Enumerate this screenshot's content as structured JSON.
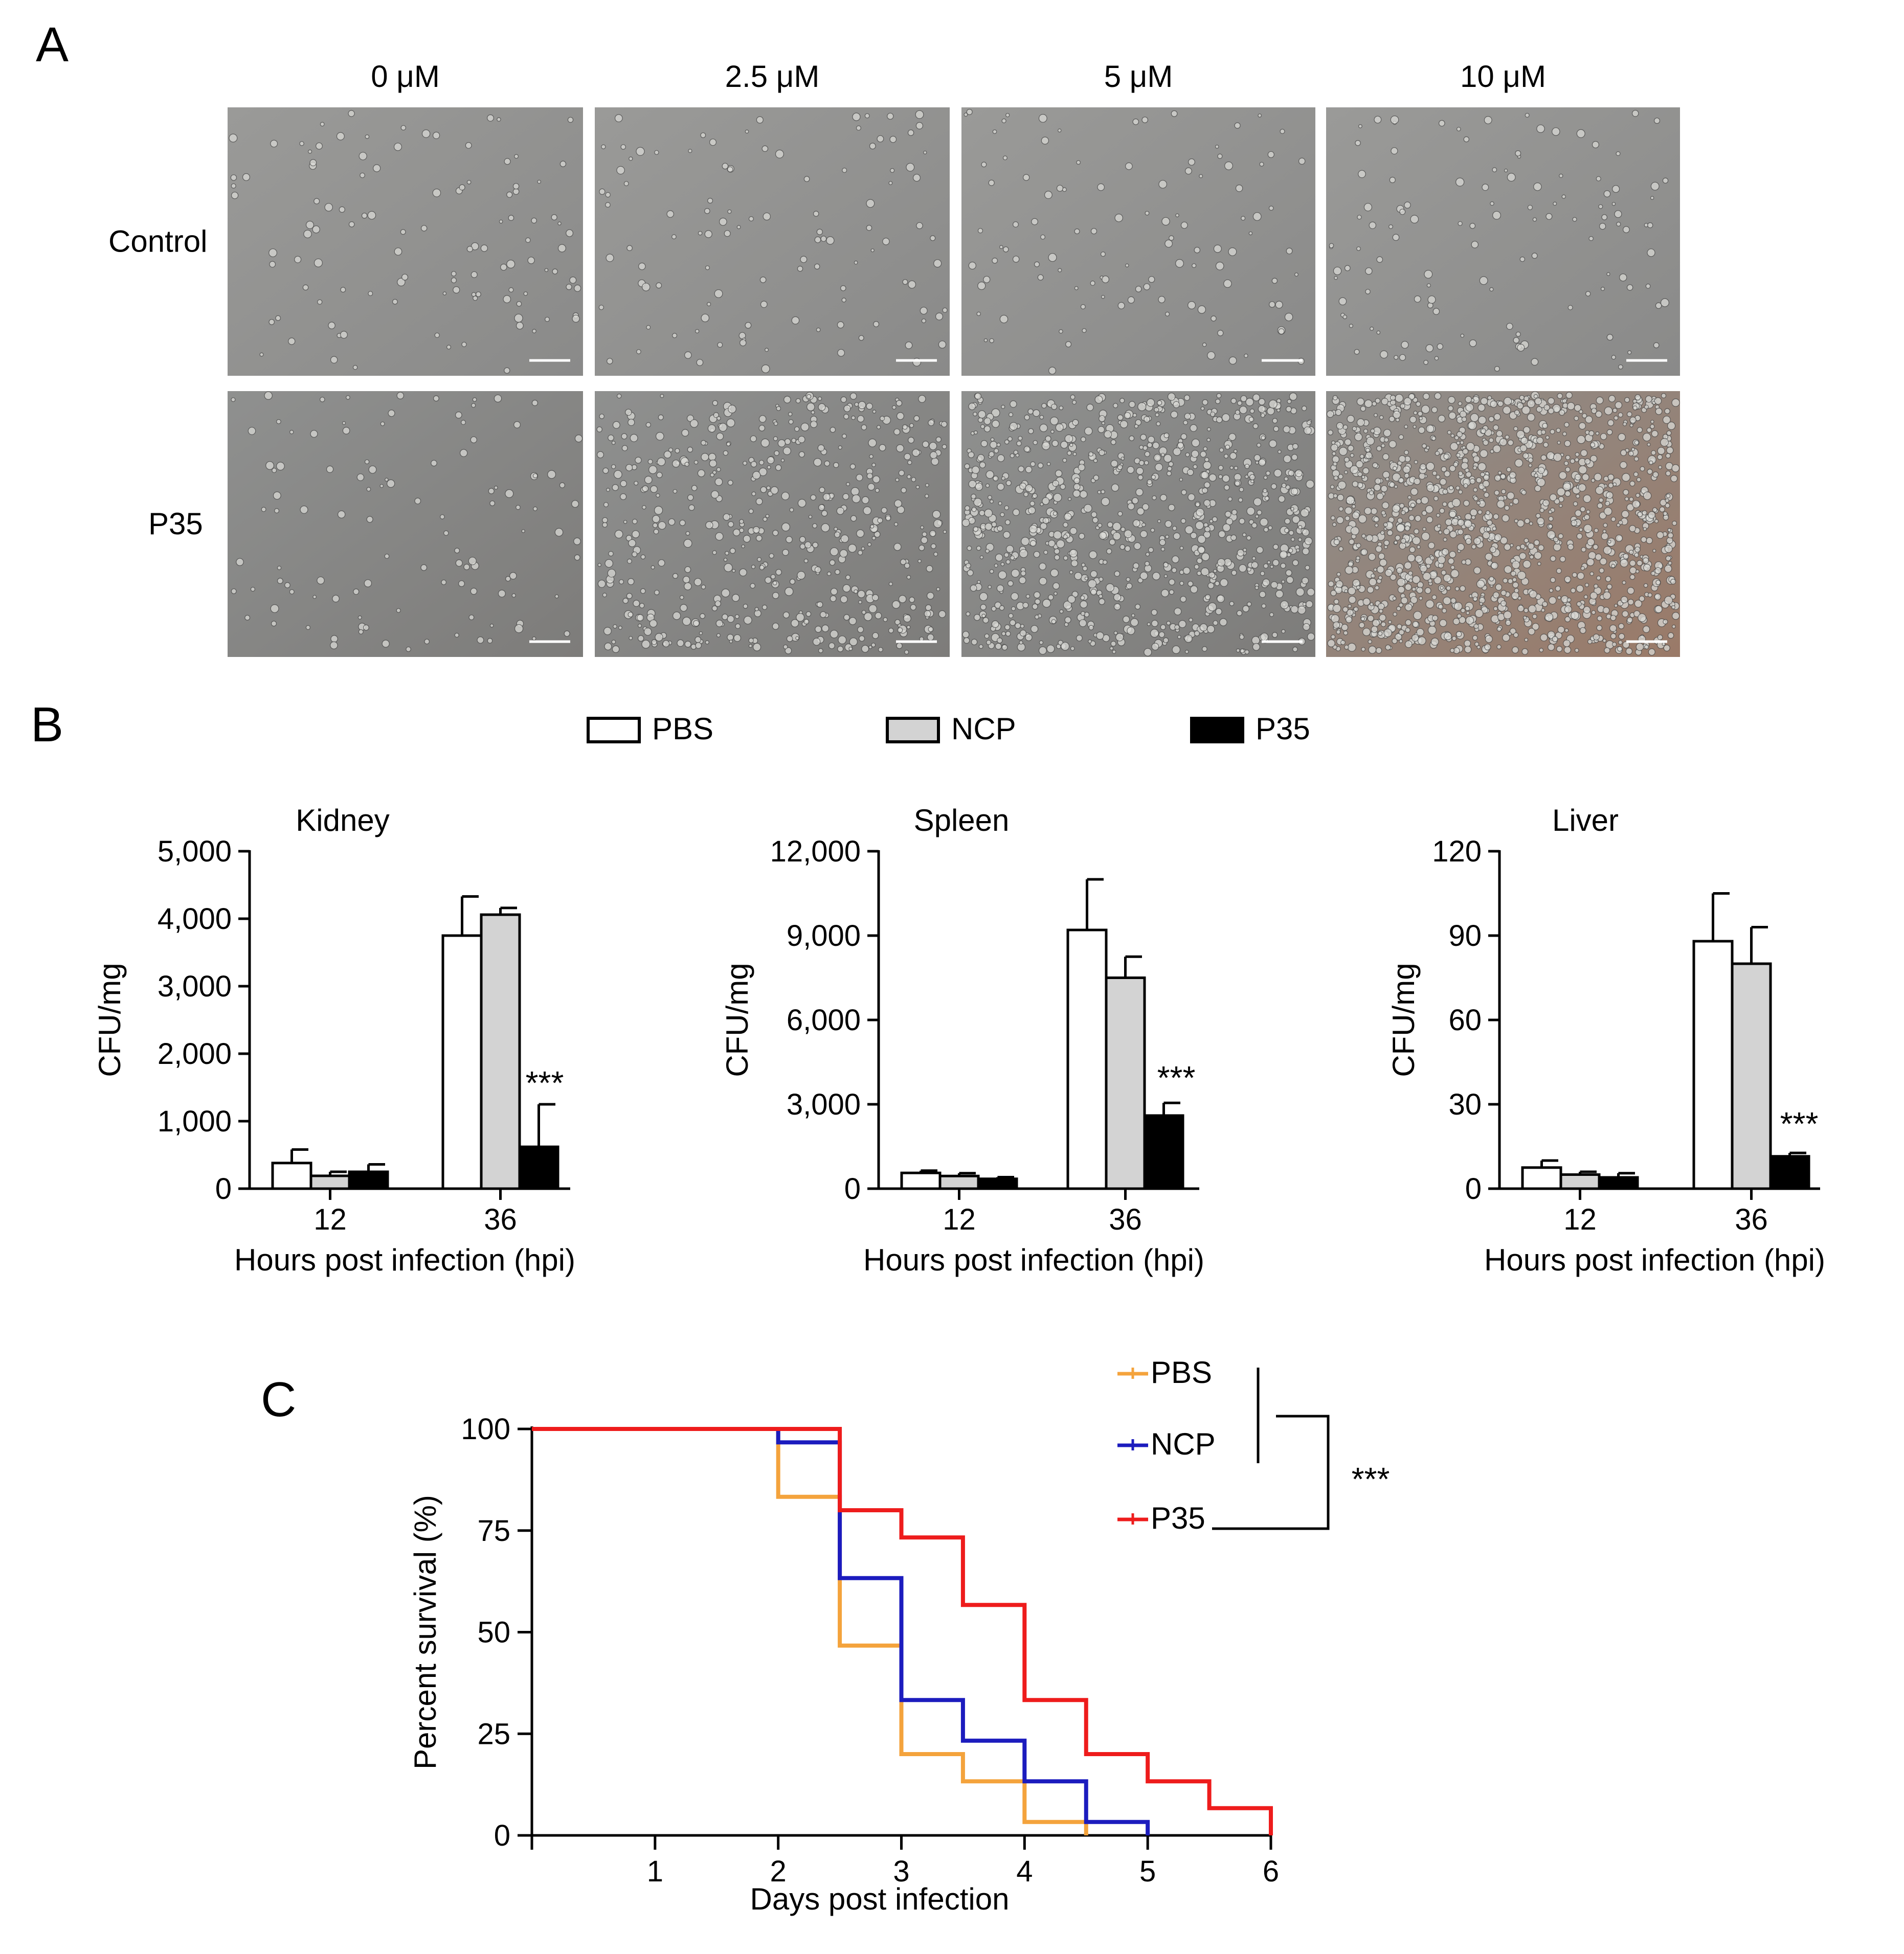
{
  "panel_a": {
    "letter": "A",
    "concentrations": [
      "0 μM",
      "2.5 μM",
      "5 μM",
      "10 μM"
    ],
    "rows": [
      "Control",
      "P35"
    ],
    "density": [
      [
        0.05,
        0.05,
        0.05,
        0.06
      ],
      [
        0.05,
        0.35,
        0.6,
        0.95
      ]
    ]
  },
  "panel_b": {
    "letter": "B",
    "legend": [
      "PBS",
      "NCP",
      "P35"
    ],
    "series_colors": [
      "#ffffff",
      "#d3d3d3",
      "#000000"
    ]
  },
  "panel_c": {
    "letter": "C",
    "significance": "***",
    "legend": [
      "PBS",
      "NCP",
      "P35"
    ]
  },
  "chart_data": [
    {
      "type": "bar",
      "title": "Kidney",
      "xlabel": "Hours post infection (hpi)",
      "ylabel": "CFU/mg",
      "categories": [
        "12",
        "36"
      ],
      "ylim": [
        0,
        5000
      ],
      "yticks": [
        0,
        1000,
        2000,
        3000,
        4000,
        5000
      ],
      "ytick_labels": [
        "0",
        "1,000",
        "2,000",
        "3,000",
        "4,000",
        "5,000"
      ],
      "series": [
        {
          "name": "PBS",
          "values": [
            380,
            3750
          ],
          "errors": [
            200,
            580
          ]
        },
        {
          "name": "NCP",
          "values": [
            190,
            4060
          ],
          "errors": [
            60,
            100
          ]
        },
        {
          "name": "P35",
          "values": [
            250,
            620
          ],
          "errors": [
            110,
            630
          ]
        }
      ],
      "annotation": "***"
    },
    {
      "type": "bar",
      "title": "Spleen",
      "xlabel": "Hours post infection (hpi)",
      "ylabel": "CFU/mg",
      "categories": [
        "12",
        "36"
      ],
      "ylim": [
        0,
        12000
      ],
      "yticks": [
        0,
        3000,
        6000,
        9000,
        12000
      ],
      "ytick_labels": [
        "0",
        "3,000",
        "6,000",
        "9,000",
        "12,000"
      ],
      "series": [
        {
          "name": "PBS",
          "values": [
            560,
            9200
          ],
          "errors": [
            80,
            1800
          ]
        },
        {
          "name": "NCP",
          "values": [
            450,
            7500
          ],
          "errors": [
            100,
            750
          ]
        },
        {
          "name": "P35",
          "values": [
            350,
            2600
          ],
          "errors": [
            60,
            450
          ]
        }
      ],
      "annotation": "***"
    },
    {
      "type": "bar",
      "title": "Liver",
      "xlabel": "Hours post infection (hpi)",
      "ylabel": "CFU/mg",
      "categories": [
        "12",
        "36"
      ],
      "ylim": [
        0,
        120
      ],
      "yticks": [
        0,
        30,
        60,
        90,
        120
      ],
      "ytick_labels": [
        "0",
        "30",
        "60",
        "90",
        "120"
      ],
      "series": [
        {
          "name": "PBS",
          "values": [
            7.5,
            88
          ],
          "errors": [
            2.5,
            17
          ]
        },
        {
          "name": "NCP",
          "values": [
            5,
            80
          ],
          "errors": [
            1,
            13
          ]
        },
        {
          "name": "P35",
          "values": [
            4,
            11.5
          ],
          "errors": [
            1.5,
            1.2
          ]
        }
      ],
      "annotation": "***"
    },
    {
      "type": "line",
      "step": true,
      "xlabel": "Days post infection",
      "ylabel": "Percent survival (%)",
      "xlim": [
        0,
        6
      ],
      "ylim": [
        0,
        100
      ],
      "xticks": [
        1,
        2,
        3,
        4,
        5,
        6
      ],
      "yticks": [
        0,
        25,
        50,
        75,
        100
      ],
      "series": [
        {
          "name": "PBS",
          "color": "#f4a33c",
          "x": [
            0,
            2,
            2.5,
            3,
            3.5,
            4,
            4.5
          ],
          "y": [
            100,
            83.3,
            46.7,
            20,
            13.3,
            3.3,
            0
          ]
        },
        {
          "name": "NCP",
          "color": "#1c1cbe",
          "x": [
            0,
            2,
            2.5,
            3,
            3.5,
            4,
            4.5,
            5
          ],
          "y": [
            100,
            96.7,
            63.3,
            33.3,
            23.3,
            13.3,
            3.3,
            0
          ]
        },
        {
          "name": "P35",
          "color": "#ee1c1c",
          "x": [
            0,
            2.5,
            3,
            3.5,
            4,
            4.5,
            5,
            5.5,
            6
          ],
          "y": [
            100,
            80,
            73.3,
            56.7,
            33.3,
            20,
            13.3,
            6.7,
            0
          ]
        }
      ]
    }
  ]
}
